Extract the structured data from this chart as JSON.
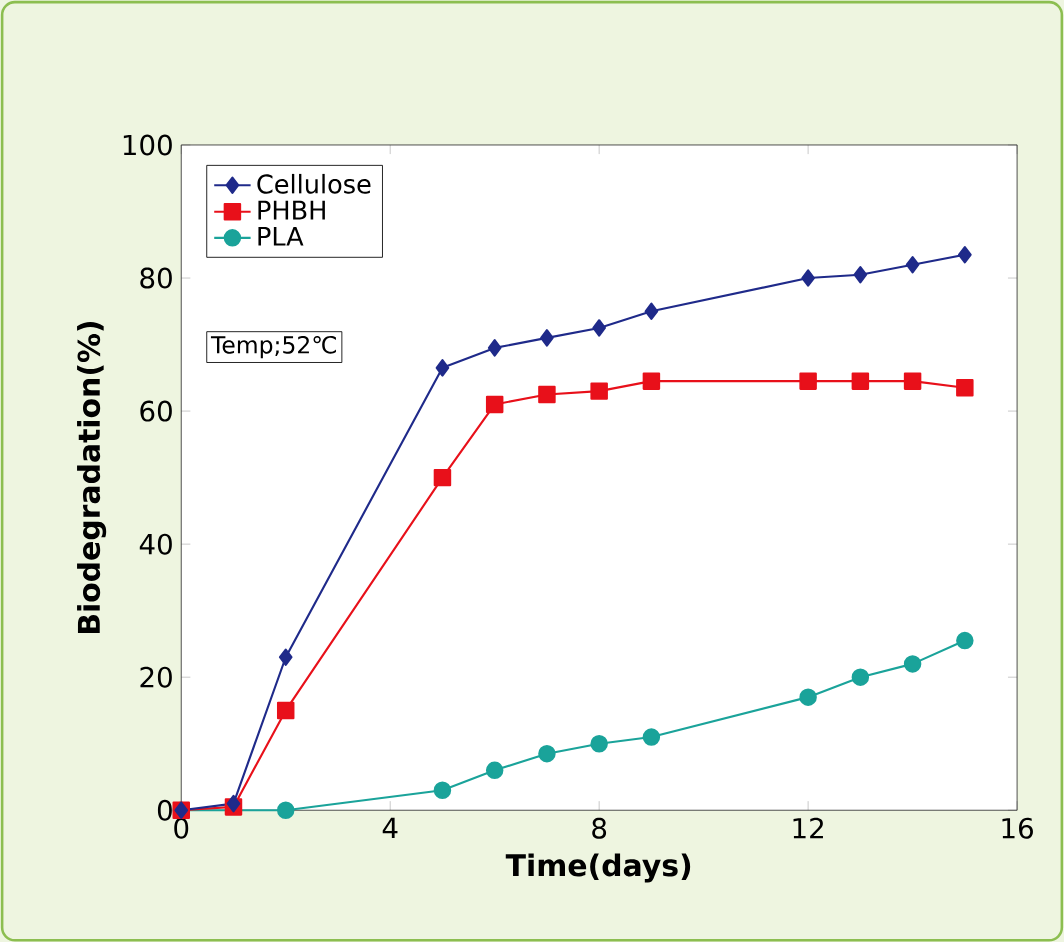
{
  "chart_data": {
    "type": "line",
    "xlabel": "Time(days)",
    "ylabel": "Biodegradation(%)",
    "xlim": [
      0,
      16
    ],
    "ylim": [
      0,
      100
    ],
    "xticks": [
      0,
      4,
      8,
      12,
      16
    ],
    "yticks": [
      0,
      20,
      40,
      60,
      80,
      100
    ],
    "grid": false,
    "legend": "top left",
    "line_style": "solid",
    "annotations": [
      "Temp;52℃"
    ],
    "series": [
      {
        "name": "Cellulose",
        "color": "#1f2a8a",
        "marker": "diamond",
        "x": [
          0,
          1,
          2,
          5,
          6,
          7,
          8,
          9,
          12,
          13,
          14,
          15
        ],
        "values": [
          0,
          1,
          23,
          66.5,
          69.5,
          71,
          72.5,
          75,
          80,
          80.5,
          82,
          83.5
        ]
      },
      {
        "name": "PHBH",
        "color": "#e8101a",
        "marker": "square",
        "x": [
          0,
          1,
          2,
          5,
          6,
          7,
          8,
          9,
          12,
          13,
          14,
          15
        ],
        "values": [
          0,
          0.5,
          15,
          50,
          61,
          62.5,
          63,
          64.5,
          64.5,
          64.5,
          64.5,
          63.5
        ]
      },
      {
        "name": "PLA",
        "color": "#1aa39a",
        "marker": "circle",
        "x": [
          0,
          2,
          5,
          6,
          7,
          8,
          9,
          12,
          13,
          14,
          15
        ],
        "values": [
          0,
          0,
          3,
          6,
          8.5,
          10,
          11,
          17,
          20,
          22,
          25.5
        ]
      }
    ]
  }
}
